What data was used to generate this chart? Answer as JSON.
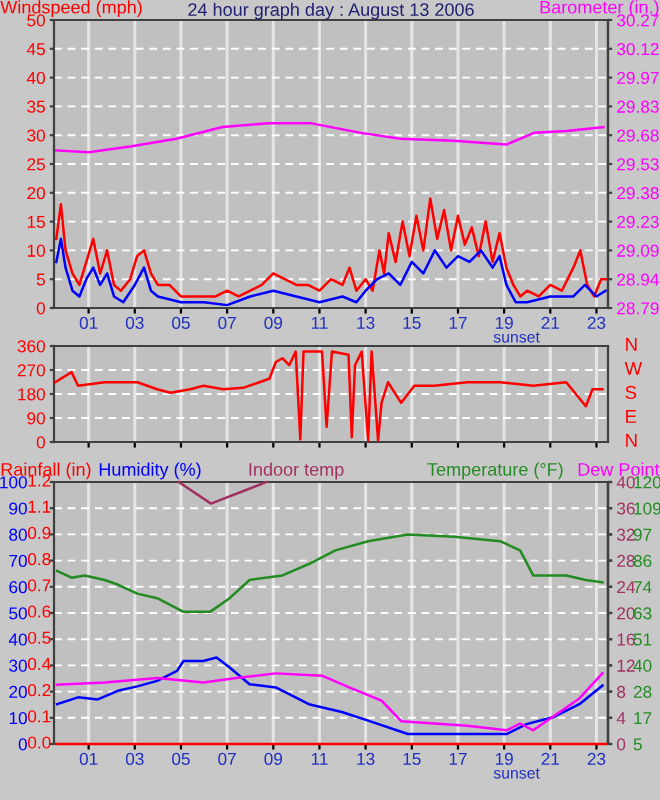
{
  "chart_data": [
    {
      "type": "line",
      "title": "24 hour graph day : August 13 2006",
      "ylabel": "Windspeed (mph)",
      "y2label": "Barometer (in.)",
      "xlim": [
        -0.5,
        23.5
      ],
      "xticks": [
        {
          "value": 1,
          "label": "01"
        },
        {
          "value": 3,
          "label": "03"
        },
        {
          "value": 5,
          "label": "05"
        },
        {
          "value": 7,
          "label": "07"
        },
        {
          "value": 9,
          "label": "09"
        },
        11,
        13,
        15,
        17,
        19,
        21,
        23
      ],
      "ylim": [
        0,
        50
      ],
      "yticks": [
        0,
        5,
        10,
        15,
        20,
        25,
        30,
        35,
        40,
        45,
        50
      ],
      "y2lim": [
        28.79,
        30.27
      ],
      "y2ticks": [
        28.79,
        {
          "value": 28.938,
          "label": "28.94"
        },
        {
          "value": 29.086,
          "label": "29.09"
        },
        {
          "value": 29.234,
          "label": "29.23"
        },
        {
          "value": 29.382,
          "label": "29.38"
        },
        29.53,
        {
          "value": 29.678,
          "label": "29.68"
        },
        {
          "value": 29.826,
          "label": "29.83"
        },
        {
          "value": 29.974,
          "label": "29.97"
        },
        {
          "value": 30.122,
          "label": "30.12"
        },
        30.27
      ],
      "grid": true,
      "series": [
        {
          "color": "#ff0000",
          "axis": "y",
          "x": [
            -0.4,
            -0.2,
            0,
            0.3,
            0.6,
            0.9,
            1.2,
            1.5,
            1.8,
            2.1,
            2.4,
            2.8,
            3.1,
            3.4,
            3.7,
            4.0,
            4.5,
            5.0,
            5.5,
            6.0,
            6.5,
            7.0,
            7.5,
            8.0,
            8.5,
            9.0,
            9.5,
            10,
            10.5,
            11,
            11.5,
            12,
            12.3,
            12.6,
            13,
            13.3,
            13.6,
            13.8,
            14,
            14.3,
            14.6,
            14.9,
            15.2,
            15.5,
            15.8,
            16.1,
            16.4,
            16.7,
            17,
            17.3,
            17.6,
            17.9,
            18.2,
            18.5,
            18.8,
            19.1,
            19.4,
            19.7,
            20,
            20.5,
            21,
            21.5,
            22,
            22.3,
            22.6,
            22.9,
            23.2,
            23.4
          ],
          "values": [
            12,
            18,
            10,
            6,
            4,
            8,
            12,
            6,
            10,
            4,
            3,
            5,
            9,
            10,
            6,
            4,
            4,
            2,
            2,
            2,
            2,
            3,
            2,
            3,
            4,
            6,
            5,
            4,
            4,
            3,
            5,
            4,
            7,
            3,
            5,
            3,
            10,
            6,
            13,
            8,
            15,
            9,
            16,
            10,
            19,
            12,
            17,
            10,
            16,
            11,
            14,
            9,
            15,
            8,
            13,
            7,
            4,
            2,
            3,
            2,
            4,
            3,
            7,
            10,
            4,
            2,
            5,
            5
          ]
        },
        {
          "color": "#0000ff",
          "axis": "y",
          "x": [
            -0.4,
            -0.2,
            0,
            0.3,
            0.6,
            0.9,
            1.2,
            1.5,
            1.8,
            2.1,
            2.5,
            3.0,
            3.4,
            3.7,
            4.0,
            5,
            6,
            7,
            8,
            9,
            10,
            11,
            12,
            12.6,
            13,
            13.5,
            14,
            14.5,
            15,
            15.5,
            16,
            16.5,
            17,
            17.5,
            18,
            18.5,
            18.8,
            19.1,
            19.5,
            20,
            21,
            22,
            22.5,
            23,
            23.4
          ],
          "values": [
            8,
            12,
            7,
            3,
            2,
            5,
            7,
            4,
            6,
            2,
            1,
            4,
            7,
            3,
            2,
            1,
            1,
            0.5,
            2,
            3,
            2,
            1,
            2,
            1,
            3,
            5,
            6,
            4,
            8,
            6,
            10,
            7,
            9,
            8,
            10,
            7,
            9,
            4,
            1,
            1,
            2,
            2,
            4,
            2,
            3
          ]
        },
        {
          "color": "#ff00ff",
          "axis": "y2",
          "x": [
            -0.4,
            1.0,
            2.8,
            4.8,
            6.8,
            8.8,
            10.6,
            12.8,
            14.5,
            16.8,
            19.1,
            20.3,
            21.7,
            23.3
          ],
          "values": [
            29.6,
            29.59,
            29.62,
            29.66,
            29.72,
            29.74,
            29.74,
            29.69,
            29.66,
            29.65,
            29.63,
            29.69,
            29.7,
            29.72
          ]
        }
      ],
      "annotations": [
        "sunset"
      ]
    },
    {
      "type": "line",
      "xlim": [
        -0.5,
        23.5
      ],
      "xticks": [
        {
          "value": 1,
          "label": null
        },
        {
          "value": 3,
          "label": null
        },
        {
          "value": 5,
          "label": null
        },
        {
          "value": 7,
          "label": null
        },
        {
          "value": 9,
          "label": null
        },
        {
          "value": 11,
          "label": null
        },
        {
          "value": 13,
          "label": null
        },
        {
          "value": 15,
          "label": null
        },
        {
          "value": 17,
          "label": null
        },
        {
          "value": 19,
          "label": null
        },
        {
          "value": 21,
          "label": null
        },
        {
          "value": 23,
          "label": null
        }
      ],
      "ylim": [
        0,
        360
      ],
      "yticks": [
        0,
        90,
        180,
        270,
        360
      ],
      "grid": true,
      "tick_labels": "y",
      "annotations": [
        "N",
        "W",
        "S",
        "E",
        "N"
      ],
      "series": [
        {
          "color": "#ff0000",
          "axis": "y",
          "x": [
            -0.45,
            0.26,
            0.54,
            1.69,
            3.11,
            3.97,
            4.54,
            5.4,
            5.97,
            6.83,
            7.69,
            8.83,
            9.11,
            9.4,
            9.69,
            9.97,
            10.17,
            10.31,
            11.11,
            11.31,
            11.54,
            12.26,
            12.4,
            12.54,
            12.83,
            13.11,
            13.26,
            13.54,
            13.69,
            13.97,
            14.54,
            15.11,
            15.97,
            17.4,
            18.83,
            20.26,
            21.69,
            22.54,
            22.83,
            23.26
          ],
          "values": [
            224,
            262,
            211,
            224,
            224,
            198,
            185,
            198,
            211,
            198,
            203,
            237,
            300,
            314,
            288,
            339,
            10,
            339,
            339,
            57,
            339,
            327,
            18,
            288,
            339,
            5,
            339,
            5,
            147,
            224,
            147,
            211,
            211,
            224,
            224,
            211,
            224,
            134,
            198,
            198
          ]
        }
      ]
    },
    {
      "type": "line",
      "ylabel": "Humidity (%)",
      "y3label": "Temperature (°F)",
      "xlim": [
        -0.5,
        23.5
      ],
      "xticks": [
        {
          "value": 1,
          "label": "01"
        },
        {
          "value": 3,
          "label": "03"
        },
        {
          "value": 5,
          "label": "05"
        },
        {
          "value": 7,
          "label": "07"
        },
        {
          "value": 9,
          "label": "09"
        },
        11,
        13,
        15,
        17,
        19,
        21,
        23
      ],
      "ylim": [
        0,
        100
      ],
      "yticks": [
        0,
        10,
        20,
        30,
        40,
        50,
        60,
        70,
        80,
        90,
        100
      ],
      "y2lim": [
        0,
        40
      ],
      "y2ticks": [
        0,
        4,
        8,
        12,
        16,
        20,
        24,
        28,
        32,
        36,
        40
      ],
      "y3lim": [
        5,
        120
      ],
      "y3ticks": [
        5,
        {
          "value": 16.5,
          "label": "17"
        },
        28,
        {
          "value": 39.5,
          "label": "40"
        },
        51,
        {
          "value": 62.5,
          "label": "63"
        },
        74,
        {
          "value": 85.5,
          "label": "86"
        },
        97,
        {
          "value": 108.5,
          "label": "109"
        },
        120
      ],
      "grid": true,
      "series": [
        {
          "color": "#0000ff",
          "axis": "y",
          "x": [
            -0.37,
            0.54,
            1.4,
            2.26,
            3.11,
            3.97,
            4.83,
            5.11,
            5.97,
            6.54,
            7.11,
            7.97,
            9.11,
            10.54,
            11.97,
            13.11,
            14.83,
            17.4,
            19.11,
            19.97,
            21.11,
            22.26,
            23.26
          ],
          "values": [
            15.2,
            17.8,
            17,
            20.3,
            22,
            24.1,
            27.9,
            31.7,
            31.7,
            33,
            29.2,
            22.8,
            21.6,
            15.2,
            12.2,
            8.9,
            3.8,
            3.8,
            3.8,
            7.6,
            10.2,
            15.2,
            22.3
          ]
        },
        {
          "color": "#ff0000",
          "axis": "y",
          "x": [
            -0.4,
            23.4
          ],
          "values": [
            0,
            0
          ]
        },
        {
          "name": "Indoor temp",
          "color": "#a03060",
          "axis": "y2",
          "x": [
            4.9,
            6.3,
            8.7
          ],
          "values": [
            40,
            36.7,
            40
          ]
        },
        {
          "color": "#228b22",
          "axis": "y3",
          "x": [
            -0.37,
            0.26,
            0.83,
            1.69,
            2.26,
            3.11,
            3.97,
            5.11,
            6.26,
            7.11,
            7.97,
            9.4,
            10.54,
            11.69,
            13.11,
            14.83,
            16.83,
            18.83,
            19.69,
            20.26,
            21.69,
            22.54,
            23.26
          ],
          "values": [
            81,
            78,
            79,
            77,
            75,
            71,
            69,
            63,
            63,
            69,
            77,
            79,
            84,
            90,
            94,
            97,
            96,
            94,
            90,
            79,
            79,
            77,
            76
          ]
        },
        {
          "name": "Dew Point",
          "color": "#ff00ff",
          "axis": "y3",
          "x": [
            -0.37,
            1.69,
            3.97,
            5.97,
            7.4,
            9.11,
            11.11,
            12.26,
            13.69,
            14.54,
            15.97,
            17.4,
            19.11,
            19.69,
            20.26,
            21.11,
            22.26,
            23.26
          ],
          "values": [
            31,
            32,
            34,
            32,
            34,
            36,
            35,
            30,
            24,
            15,
            14,
            13,
            11,
            14,
            11,
            17,
            25,
            36
          ]
        }
      ],
      "annotations": [
        "sunset",
        "Rainfall (in)",
        "0.0",
        "0.1",
        "0.2",
        "0.4",
        "0.5",
        "0.6",
        "0.7",
        "0.8",
        "0.9",
        "1.1",
        "1.2"
      ]
    }
  ]
}
